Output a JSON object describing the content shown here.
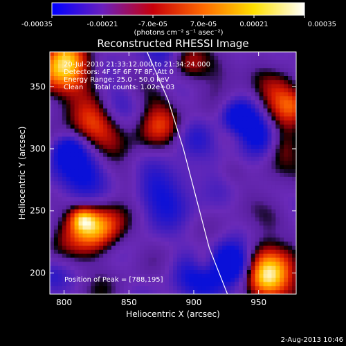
{
  "chart_data": {
    "type": "heatmap",
    "title": "Reconstructed RHESSI Image",
    "xlabel": "Heliocentric X (arcsec)",
    "ylabel": "Heliocentric Y (arcsec)",
    "xlim": [
      789,
      979
    ],
    "ylim": [
      183,
      378
    ],
    "x_ticks": [
      800,
      850,
      900,
      950
    ],
    "y_ticks": [
      200,
      250,
      300,
      350
    ],
    "x_tick_labels": [
      "800",
      "850",
      "900",
      "950"
    ],
    "y_tick_labels": [
      "200",
      "250",
      "300",
      "350"
    ],
    "colorbar": {
      "range": [
        -0.00035,
        0.00035
      ],
      "ticks": [
        -0.00035,
        -0.00021,
        -7e-05,
        7e-05,
        0.00021,
        0.00035
      ],
      "tick_labels": [
        "-0.00035",
        "-0.00021",
        "-7.0e-05",
        "7.0e-05",
        "0.00021",
        "0.00035"
      ],
      "unit_label": "(photons cm⁻² s⁻¹ asec⁻²)",
      "colors": [
        "#0000ff",
        "#6a1fbf",
        "#c8000a",
        "#ff6a00",
        "#ffe000",
        "#ffffff"
      ]
    },
    "annotations": [
      "20-Jul-2010 21:33:12.000 to 21:34:24.000",
      "Detectors: 4F 5F 6F 7F 8F, Att 0",
      "Energy Range: 25.0 - 50.0 keV",
      "Clean     Total counts: 1.02e+03"
    ],
    "peak_label": "Position of Peak = [788,195]",
    "peak_position": [
      788,
      195
    ],
    "limb_curve": [
      [
        864,
        378
      ],
      [
        880,
        340
      ],
      [
        892,
        300
      ],
      [
        902,
        260
      ],
      [
        912,
        220
      ],
      [
        926,
        183
      ]
    ],
    "grid": false
  },
  "footer": {
    "date_stamp": "2-Aug-2013 10:46"
  }
}
